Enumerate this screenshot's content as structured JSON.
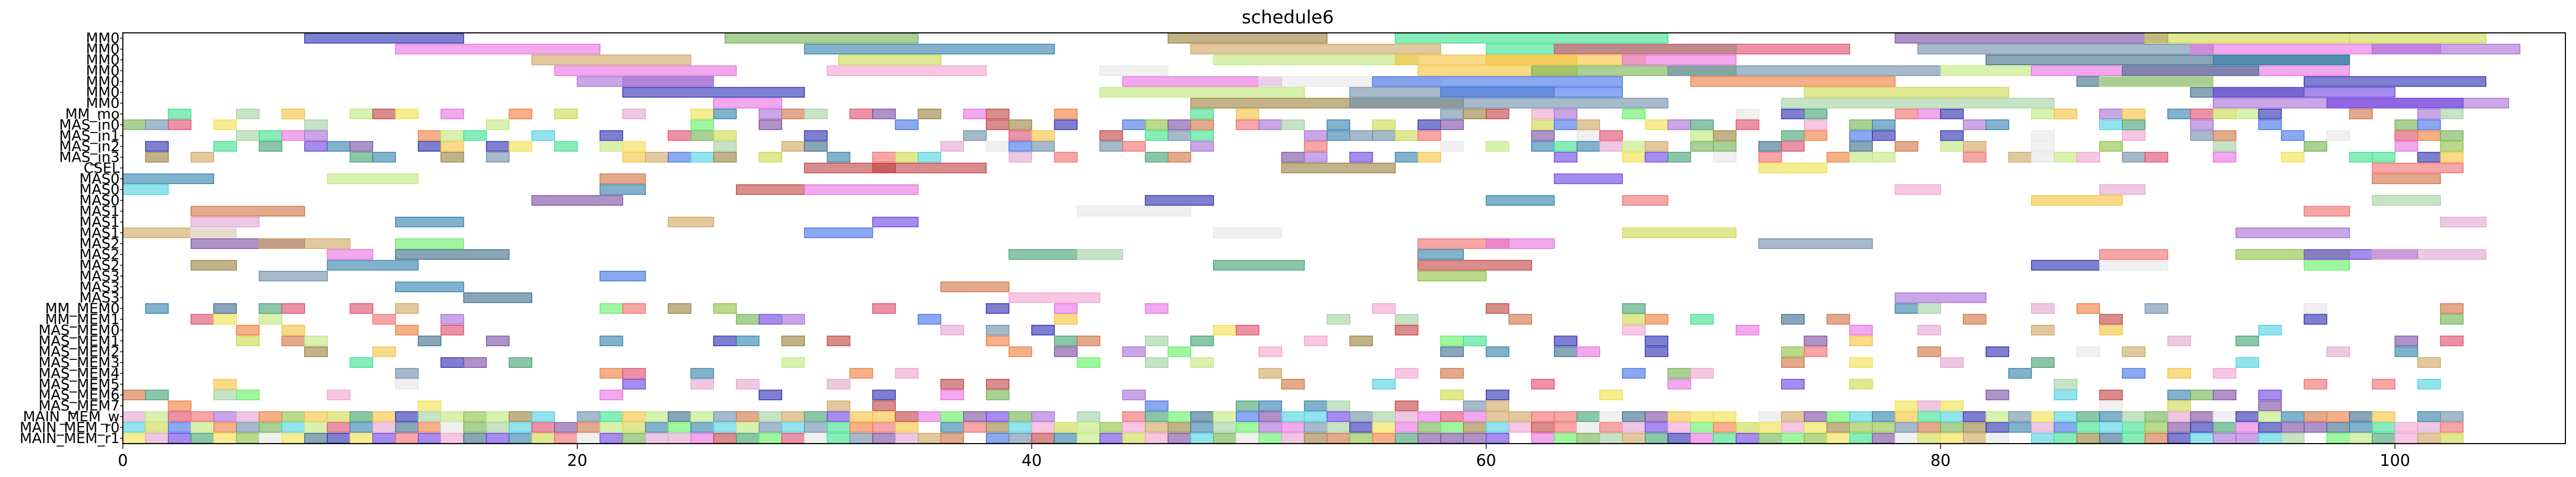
{
  "chart_data": {
    "type": "gantt",
    "title": "schedule6",
    "xlim": [
      0,
      107.5
    ],
    "xticks": [
      0,
      20,
      40,
      60,
      80,
      100
    ],
    "rows": [
      "MM0",
      "MM0",
      "MM0",
      "MM0",
      "MM0",
      "MM0",
      "MM0",
      "MM_mo",
      "MAS_in0",
      "MAS_in1",
      "MAS_in2",
      "MAS_in3",
      "CSEL",
      "MAS0",
      "MAS0",
      "MAS0",
      "MAS1",
      "MAS1",
      "MAS1",
      "MAS2",
      "MAS2",
      "MAS2",
      "MAS3",
      "MAS3",
      "MAS3",
      "MM_MEM0",
      "MM_MEM1",
      "MAS_MEM0",
      "MAS_MEM1",
      "MAS_MEM2",
      "MAS_MEM3",
      "MAS_MEM4",
      "MAS_MEM5",
      "MAS_MEM6",
      "MAS_MEM7",
      "MAIN_MEM_w",
      "MAIN_MEM_r0",
      "MAIN_MEM_r1"
    ],
    "palette": [
      "#2a2ab0",
      "#e76ee0",
      "#6fb04f",
      "#cfa45e",
      "#2f7ea8",
      "#e2a3cf",
      "#9a7f3a",
      "#38e08a",
      "#f4c23b",
      "#6b8ca8",
      "#a66ad6",
      "#3e6ee6",
      "#ccd84a",
      "#ee7a3a",
      "#bfe87a",
      "#3a6a8a",
      "#f0e04a",
      "#4ad0e0",
      "#e04a6a",
      "#8abf40",
      "#c04040",
      "#40a070",
      "#7a4aa0",
      "#e6e6e6",
      "#f06a6a",
      "#6a40e0",
      "#a0d0a0",
      "#d07040",
      "#f0a0d0",
      "#60f060"
    ],
    "segments": [
      [
        0,
        8,
        15,
        0
      ],
      [
        0,
        26.5,
        35,
        2
      ],
      [
        0,
        46,
        53,
        6
      ],
      [
        0,
        56,
        68,
        7
      ],
      [
        0,
        78,
        90,
        22
      ],
      [
        0,
        89,
        98,
        12
      ],
      [
        0,
        98,
        104,
        12
      ],
      [
        1,
        12,
        21,
        1
      ],
      [
        1,
        30,
        41,
        4
      ],
      [
        1,
        47,
        58,
        3
      ],
      [
        1,
        60,
        71,
        7
      ],
      [
        1,
        63,
        76,
        18
      ],
      [
        1,
        79,
        92,
        9
      ],
      [
        1,
        91,
        102,
        1
      ],
      [
        1,
        99,
        105.5,
        10
      ],
      [
        2,
        18,
        25,
        3
      ],
      [
        2,
        31.5,
        36,
        12
      ],
      [
        2,
        48,
        57,
        14
      ],
      [
        2,
        56,
        64,
        8
      ],
      [
        2,
        60,
        67,
        8
      ],
      [
        2,
        66,
        71,
        1
      ],
      [
        2,
        82,
        98,
        15
      ],
      [
        2,
        92,
        98,
        4
      ],
      [
        3,
        19,
        27,
        1
      ],
      [
        3,
        31,
        38,
        28
      ],
      [
        3,
        43,
        46,
        23
      ],
      [
        3,
        57,
        64,
        8
      ],
      [
        3,
        62,
        71,
        2
      ],
      [
        3,
        68,
        80,
        9
      ],
      [
        3,
        80,
        84,
        14
      ],
      [
        3,
        84,
        98,
        1
      ],
      [
        3,
        88,
        94,
        15
      ],
      [
        4,
        20,
        26,
        10
      ],
      [
        4,
        22,
        26,
        10
      ],
      [
        4,
        44,
        51,
        1
      ],
      [
        4,
        50,
        58,
        23
      ],
      [
        4,
        55,
        66,
        11
      ],
      [
        4,
        69,
        78,
        13
      ],
      [
        4,
        86,
        92,
        15
      ],
      [
        4,
        87,
        92,
        14
      ],
      [
        4,
        96,
        104,
        0
      ],
      [
        5,
        22,
        30,
        0
      ],
      [
        5,
        43,
        52,
        14
      ],
      [
        5,
        54,
        63,
        9
      ],
      [
        5,
        58,
        66,
        11
      ],
      [
        5,
        74,
        83,
        12
      ],
      [
        5,
        91,
        96,
        15
      ],
      [
        5,
        92,
        100,
        25
      ],
      [
        6,
        26,
        29,
        1
      ],
      [
        6,
        47,
        59,
        6
      ],
      [
        6,
        54,
        68,
        9
      ],
      [
        6,
        73,
        85,
        26
      ],
      [
        6,
        92,
        105,
        10
      ],
      [
        6,
        97,
        103,
        25
      ]
    ]
  }
}
